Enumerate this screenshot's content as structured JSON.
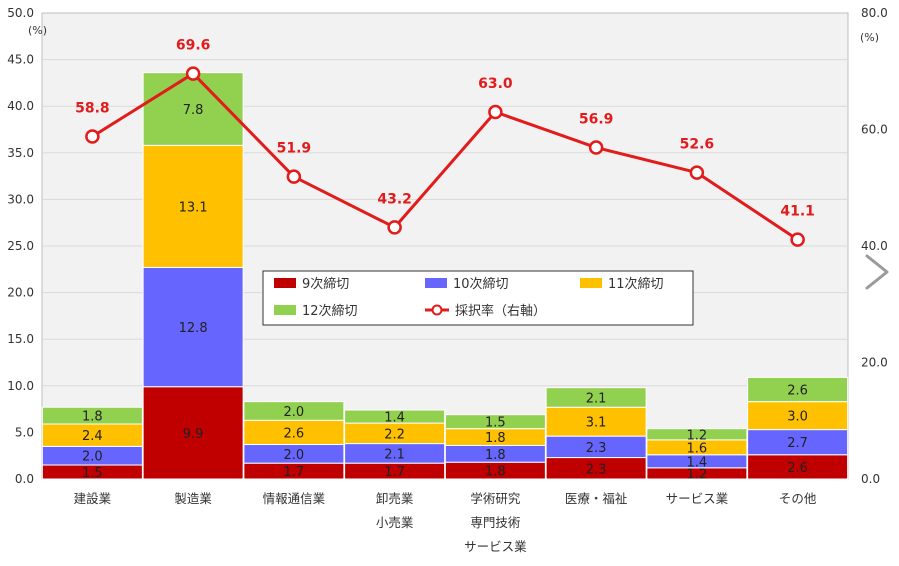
{
  "chart_data": {
    "type": "bar",
    "stacked": true,
    "categories": [
      [
        "建設業"
      ],
      [
        "製造業"
      ],
      [
        "情報通信業"
      ],
      [
        "卸売業",
        "小売業"
      ],
      [
        "学術研究",
        "専門技術",
        "サービス業"
      ],
      [
        "医療・福祉"
      ],
      [
        "サービス業"
      ],
      [
        "その他"
      ]
    ],
    "series": [
      {
        "name": "9次締切",
        "color": "#c00000",
        "values": [
          1.5,
          9.9,
          1.7,
          1.7,
          1.8,
          2.3,
          1.2,
          2.6
        ]
      },
      {
        "name": "10次締切",
        "color": "#6666ff",
        "values": [
          2.0,
          12.8,
          2.0,
          2.1,
          1.8,
          2.3,
          1.4,
          2.7
        ]
      },
      {
        "name": "11次締切",
        "color": "#ffc000",
        "values": [
          2.4,
          13.1,
          2.6,
          2.2,
          1.8,
          3.1,
          1.6,
          3.0
        ]
      },
      {
        "name": "12次締切",
        "color": "#92d050",
        "values": [
          1.8,
          7.8,
          2.0,
          1.4,
          1.5,
          2.1,
          1.2,
          2.6
        ]
      }
    ],
    "line_series": {
      "name": "採択率（右軸）",
      "color": "#e21b1b",
      "axis": "right",
      "values": [
        58.8,
        69.6,
        51.9,
        43.2,
        63.0,
        56.9,
        52.6,
        41.1
      ],
      "labels": [
        "58.8",
        "69.6",
        "51.9",
        "43.2",
        "63.0",
        "56.9",
        "52.6",
        "41.1"
      ]
    },
    "y_left": {
      "unit": "(%)",
      "ylim": [
        0,
        50
      ],
      "ticks": [
        "0.0",
        "5.0",
        "10.0",
        "15.0",
        "20.0",
        "25.0",
        "30.0",
        "35.0",
        "40.0",
        "45.0",
        "50.0"
      ]
    },
    "y_right": {
      "unit": "(%)",
      "ylim": [
        0,
        80
      ],
      "ticks": [
        "0.0",
        "20.0",
        "40.0",
        "60.0",
        "80.0"
      ]
    },
    "grid": true,
    "legend_position": "center"
  },
  "ui": {
    "next_arrow_icon": "chevron-right-icon"
  }
}
